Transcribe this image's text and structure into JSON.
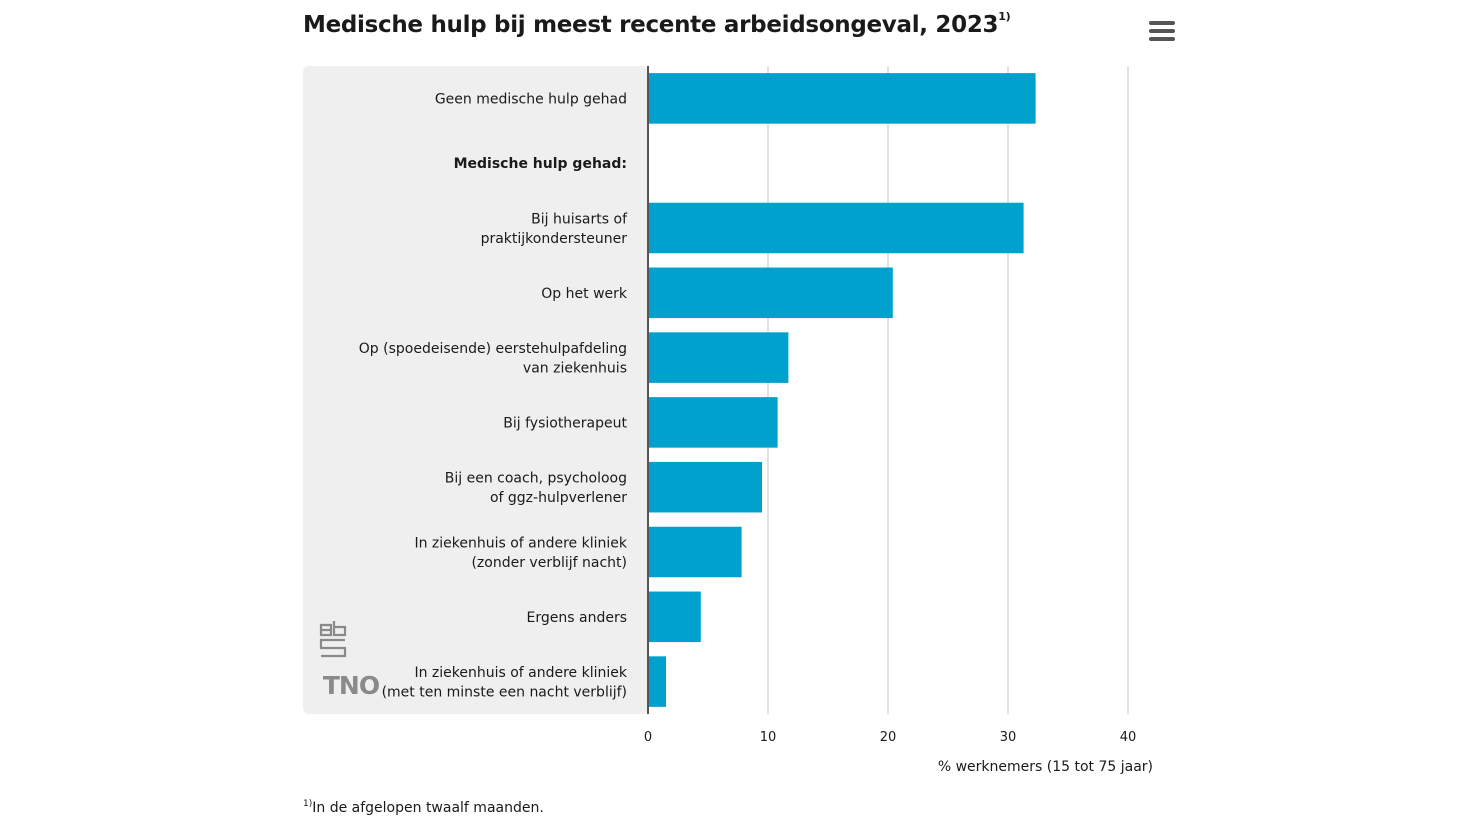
{
  "title": "Medische hulp bij meest recente arbeidsongeval, 2023",
  "title_footnote_marker": "1)",
  "menu_icon": "hamburger-menu-icon",
  "footnote": {
    "marker": "1)",
    "text": "In de afgelopen twaalf maanden."
  },
  "logos": {
    "cbs": "cbs",
    "tno": "TNO"
  },
  "colors": {
    "bar": "#00a1cd",
    "panel": "#efefef",
    "grid": "#d9d9d9",
    "axis": "#555555"
  },
  "chart_data": {
    "type": "bar",
    "orientation": "horizontal",
    "title": "Medische hulp bij meest recente arbeidsongeval, 2023",
    "xlabel": "% werknemers (15 tot 75 jaar)",
    "ylabel": "",
    "xlim": [
      0,
      40
    ],
    "xticks": [
      0,
      10,
      20,
      30,
      40
    ],
    "grid": true,
    "categories": [
      {
        "lines": [
          "Geen medische hulp gehad"
        ],
        "bold": false
      },
      {
        "lines": [
          "Medische hulp gehad:"
        ],
        "bold": true
      },
      {
        "lines": [
          "Bij huisarts of",
          "praktijkondersteuner"
        ],
        "bold": false
      },
      {
        "lines": [
          "Op het werk"
        ],
        "bold": false
      },
      {
        "lines": [
          "Op (spoedeisende) eerstehulpafdeling",
          "van ziekenhuis"
        ],
        "bold": false
      },
      {
        "lines": [
          "Bij fysiotherapeut"
        ],
        "bold": false
      },
      {
        "lines": [
          "Bij een coach, psycholoog",
          "of ggz-hulpverlener"
        ],
        "bold": false
      },
      {
        "lines": [
          "In ziekenhuis of andere kliniek",
          "(zonder verblijf nacht)"
        ],
        "bold": false
      },
      {
        "lines": [
          "Ergens anders"
        ],
        "bold": false
      },
      {
        "lines": [
          "In ziekenhuis of andere kliniek",
          "(met ten minste een nacht verblijf)"
        ],
        "bold": false
      }
    ],
    "values": [
      32.3,
      null,
      31.3,
      20.4,
      11.7,
      10.8,
      9.5,
      7.8,
      4.4,
      1.5
    ]
  }
}
